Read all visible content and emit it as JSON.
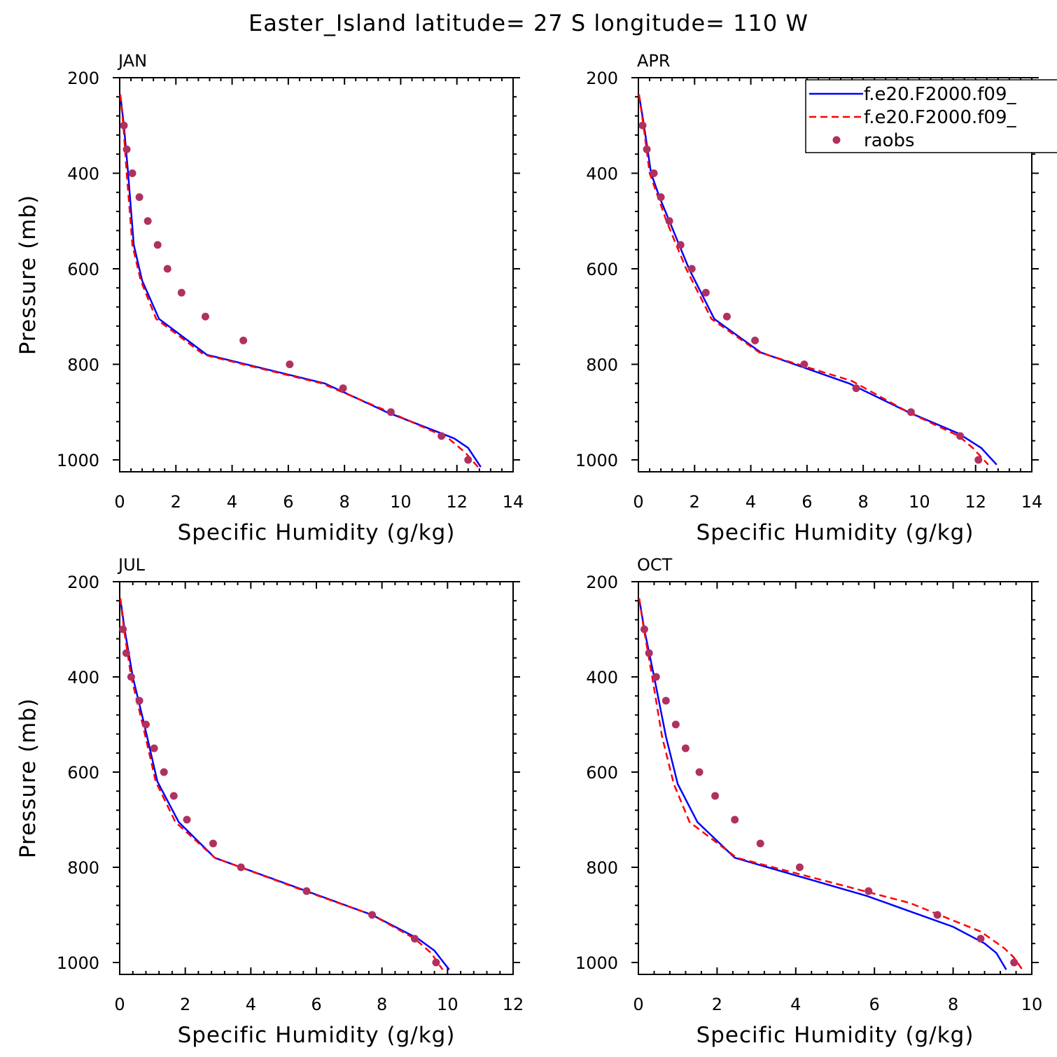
{
  "title": "Easter_Island  latitude= 27 S longitude= 110 W",
  "colors": {
    "series_1": "#0000ff",
    "series_2": "#ff0000",
    "raobs": "#b03060",
    "axes": "#000000"
  },
  "legend": {
    "placement": "top-right of APR panel",
    "entries": [
      {
        "label": "f.e20.F2000.f09_",
        "style": "solid",
        "color": "#0000ff"
      },
      {
        "label": "f.e20.F2000.f09_",
        "style": "dashed",
        "color": "#ff0000"
      },
      {
        "label": "raobs",
        "style": "marker",
        "color": "#b03060"
      }
    ]
  },
  "chart_data": [
    {
      "type": "line",
      "panel": "JAN",
      "xlabel": "Specific Humidity (g/kg)",
      "ylabel": "Pressure (mb)",
      "xlim": [
        0,
        14
      ],
      "ylim": [
        1025,
        200
      ],
      "xticks": [
        0,
        2,
        4,
        6,
        8,
        10,
        12,
        14
      ],
      "yticks": [
        200,
        400,
        600,
        800,
        1000
      ],
      "series": [
        {
          "style": "solid",
          "color": "#0000ff",
          "x": [
            0.02,
            0.15,
            0.3,
            0.5,
            0.8,
            1.4,
            3.1,
            7.3,
            9.5,
            11.9,
            12.4,
            12.85
          ],
          "y": [
            235,
            300,
            400,
            550,
            625,
            705,
            780,
            840,
            900,
            955,
            975,
            1015
          ]
        },
        {
          "style": "dashed",
          "color": "#ff0000",
          "x": [
            0.02,
            0.13,
            0.25,
            0.45,
            0.75,
            1.3,
            3.0,
            7.2,
            9.6,
            11.7,
            12.3,
            12.75
          ],
          "y": [
            235,
            300,
            400,
            550,
            625,
            705,
            780,
            840,
            900,
            955,
            985,
            1015
          ]
        },
        {
          "style": "marker",
          "color": "#b03060",
          "x": [
            0.15,
            0.25,
            0.45,
            0.7,
            1.0,
            1.35,
            1.7,
            2.2,
            3.05,
            4.4,
            6.05,
            7.95,
            9.65,
            11.45,
            12.4
          ],
          "y": [
            300,
            350,
            400,
            450,
            500,
            550,
            600,
            650,
            700,
            750,
            800,
            850,
            900,
            950,
            1000
          ]
        }
      ]
    },
    {
      "type": "line",
      "panel": "APR",
      "xlabel": "Specific Humidity (g/kg)",
      "ylabel": "",
      "xlim": [
        0,
        14
      ],
      "ylim": [
        1025,
        200
      ],
      "xticks": [
        0,
        2,
        4,
        6,
        8,
        10,
        12,
        14
      ],
      "yticks": [
        200,
        400,
        600,
        800,
        1000
      ],
      "series": [
        {
          "style": "solid",
          "color": "#0000ff",
          "x": [
            0.02,
            0.2,
            0.45,
            0.75,
            1.1,
            1.8,
            2.7,
            4.35,
            7.5,
            9.6,
            11.4,
            12.2,
            12.75
          ],
          "y": [
            235,
            300,
            400,
            450,
            500,
            600,
            705,
            775,
            840,
            900,
            945,
            975,
            1010
          ]
        },
        {
          "style": "dashed",
          "color": "#ff0000",
          "x": [
            0.02,
            0.18,
            0.4,
            0.7,
            1.0,
            1.7,
            2.6,
            4.3,
            7.6,
            9.6,
            11.4,
            11.9,
            12.45
          ],
          "y": [
            235,
            300,
            400,
            450,
            500,
            600,
            705,
            775,
            835,
            900,
            950,
            975,
            1010
          ]
        },
        {
          "style": "marker",
          "color": "#b03060",
          "x": [
            0.15,
            0.3,
            0.55,
            0.8,
            1.1,
            1.5,
            1.9,
            2.4,
            3.15,
            4.15,
            5.9,
            7.75,
            9.7,
            11.45,
            12.1
          ],
          "y": [
            300,
            350,
            400,
            450,
            500,
            550,
            600,
            650,
            700,
            750,
            800,
            850,
            900,
            950,
            1000
          ]
        }
      ]
    },
    {
      "type": "line",
      "panel": "JUL",
      "xlabel": "Specific Humidity (g/kg)",
      "ylabel": "Pressure (mb)",
      "xlim": [
        0,
        12
      ],
      "ylim": [
        1025,
        200
      ],
      "xticks": [
        0,
        2,
        4,
        6,
        8,
        10,
        12
      ],
      "yticks": [
        200,
        400,
        600,
        800,
        1000
      ],
      "series": [
        {
          "style": "solid",
          "color": "#0000ff",
          "x": [
            0.02,
            0.15,
            0.4,
            0.75,
            1.15,
            1.8,
            2.9,
            5.7,
            7.7,
            9.1,
            9.6,
            10.05
          ],
          "y": [
            235,
            300,
            400,
            500,
            620,
            705,
            780,
            850,
            900,
            950,
            975,
            1015
          ]
        },
        {
          "style": "dashed",
          "color": "#ff0000",
          "x": [
            0.02,
            0.13,
            0.35,
            0.7,
            1.1,
            1.7,
            2.9,
            5.65,
            7.7,
            9.0,
            9.5,
            9.85
          ],
          "y": [
            235,
            300,
            400,
            500,
            620,
            705,
            780,
            850,
            900,
            950,
            980,
            1015
          ]
        },
        {
          "style": "marker",
          "color": "#b03060",
          "x": [
            0.1,
            0.2,
            0.35,
            0.6,
            0.8,
            1.05,
            1.35,
            1.65,
            2.05,
            2.85,
            3.7,
            5.7,
            7.7,
            9.0,
            9.65
          ],
          "y": [
            300,
            350,
            400,
            450,
            500,
            550,
            600,
            650,
            700,
            750,
            800,
            850,
            900,
            950,
            1000
          ]
        }
      ]
    },
    {
      "type": "line",
      "panel": "OCT",
      "xlabel": "Specific Humidity (g/kg)",
      "ylabel": "",
      "xlim": [
        0,
        10
      ],
      "ylim": [
        1025,
        200
      ],
      "xticks": [
        0,
        2,
        4,
        6,
        8,
        10
      ],
      "yticks": [
        200,
        400,
        600,
        800,
        1000
      ],
      "series": [
        {
          "style": "solid",
          "color": "#0000ff",
          "x": [
            0.02,
            0.15,
            0.4,
            0.7,
            1.0,
            1.5,
            2.45,
            5.8,
            8.0,
            8.8,
            9.1,
            9.35
          ],
          "y": [
            235,
            300,
            400,
            525,
            625,
            705,
            780,
            860,
            925,
            960,
            980,
            1015
          ]
        },
        {
          "style": "dashed",
          "color": "#ff0000",
          "x": [
            0.02,
            0.14,
            0.35,
            0.6,
            0.9,
            1.3,
            2.5,
            6.9,
            8.7,
            9.3,
            9.55,
            9.8
          ],
          "y": [
            235,
            300,
            400,
            525,
            625,
            705,
            780,
            875,
            935,
            970,
            990,
            1020
          ]
        },
        {
          "style": "marker",
          "color": "#b03060",
          "x": [
            0.15,
            0.27,
            0.45,
            0.7,
            0.95,
            1.2,
            1.55,
            1.95,
            2.45,
            3.1,
            4.1,
            5.85,
            7.6,
            8.7,
            9.55
          ],
          "y": [
            300,
            350,
            400,
            450,
            500,
            550,
            600,
            650,
            700,
            750,
            800,
            850,
            900,
            950,
            1000
          ]
        }
      ]
    }
  ]
}
